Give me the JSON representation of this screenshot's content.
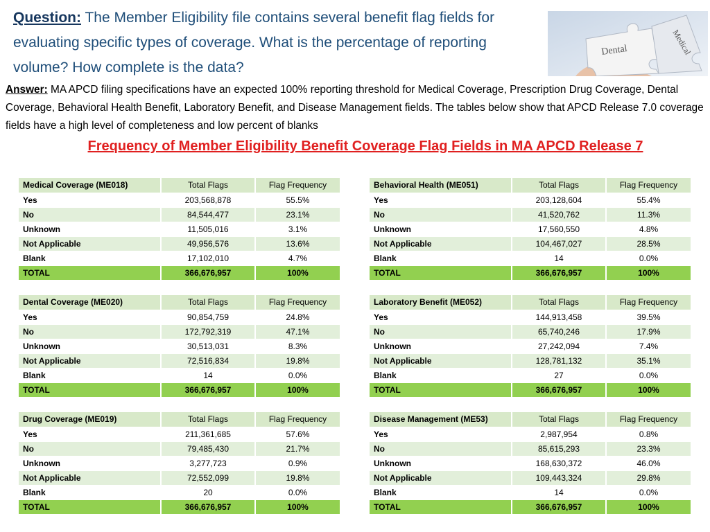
{
  "question": {
    "label": "Question:",
    "text": " The Member Eligibility file contains several benefit flag fields for evaluating  specific types of coverage. What is the percentage of reporting volume? How complete is the data?"
  },
  "image_labels": [
    "Dental",
    "Medical"
  ],
  "answer": {
    "label": "Answer:",
    "text": " MA APCD filing specifications have an expected 100% reporting threshold for Medical Coverage, Prescription Drug Coverage, Dental Coverage, Behavioral Health Benefit, Laboratory Benefit, and Disease Management fields. The tables below show that APCD Release 7.0 coverage fields have a high level of completeness and low percent of blanks"
  },
  "title": "Frequency of Member Eligibility Benefit Coverage Flag Fields in MA APCD Release 7",
  "tables": [
    {
      "header": [
        "Medical Coverage (ME018)",
        "Total Flags",
        "Flag  Frequency"
      ],
      "rows": [
        [
          "Yes",
          "203,568,878",
          "55.5%"
        ],
        [
          "No",
          "84,544,477",
          "23.1%"
        ],
        [
          "Unknown",
          "11,505,016",
          "3.1%"
        ],
        [
          "Not Applicable",
          "49,956,576",
          "13.6%"
        ],
        [
          "Blank",
          "17,102,010",
          "4.7%"
        ],
        [
          "TOTAL",
          "366,676,957",
          "100%"
        ]
      ]
    },
    {
      "header": [
        "Behavioral Health (ME051)",
        "Total Flags",
        "Flag  Frequency"
      ],
      "rows": [
        [
          "Yes",
          "203,128,604",
          "55.4%"
        ],
        [
          "No",
          "41,520,762",
          "11.3%"
        ],
        [
          "Unknown",
          "17,560,550",
          "4.8%"
        ],
        [
          "Not Applicable",
          "104,467,027",
          "28.5%"
        ],
        [
          "Blank",
          "14",
          "0.0%"
        ],
        [
          "TOTAL",
          "366,676,957",
          "100%"
        ]
      ]
    },
    {
      "header": [
        "Dental Coverage (ME020)",
        "Total Flags",
        "Flag  Frequency"
      ],
      "rows": [
        [
          "Yes",
          "90,854,759",
          "24.8%"
        ],
        [
          "No",
          "172,792,319",
          "47.1%"
        ],
        [
          "Unknown",
          "30,513,031",
          "8.3%"
        ],
        [
          "Not Applicable",
          "72,516,834",
          "19.8%"
        ],
        [
          "Blank",
          "14",
          "0.0%"
        ],
        [
          "TOTAL",
          "366,676,957",
          "100%"
        ]
      ]
    },
    {
      "header": [
        "Laboratory Benefit (ME052)",
        "Total Flags",
        "Flag  Frequency"
      ],
      "rows": [
        [
          "Yes",
          "144,913,458",
          "39.5%"
        ],
        [
          "No",
          "65,740,246",
          "17.9%"
        ],
        [
          "Unknown",
          "27,242,094",
          "7.4%"
        ],
        [
          "Not Applicable",
          "128,781,132",
          "35.1%"
        ],
        [
          "Blank",
          "27",
          "0.0%"
        ],
        [
          "TOTAL",
          "366,676,957",
          "100%"
        ]
      ]
    },
    {
      "header": [
        "Drug Coverage (ME019)",
        "Total Flags",
        "Flag  Frequency"
      ],
      "rows": [
        [
          "Yes",
          "211,361,685",
          "57.6%"
        ],
        [
          "No",
          "79,485,430",
          "21.7%"
        ],
        [
          "Unknown",
          "3,277,723",
          "0.9%"
        ],
        [
          "Not Applicable",
          "72,552,099",
          "19.8%"
        ],
        [
          "Blank",
          "20",
          "0.0%"
        ],
        [
          "TOTAL",
          "366,676,957",
          "100%"
        ]
      ]
    },
    {
      "header": [
        "Disease Management (ME53)",
        "Total Flags",
        "Flag Frequency"
      ],
      "rows": [
        [
          "Yes",
          "2,987,954",
          "0.8%"
        ],
        [
          "No",
          "85,615,293",
          "23.3%"
        ],
        [
          "Unknown",
          "168,630,372",
          "46.0%"
        ],
        [
          "Not Applicable",
          "109,443,324",
          "29.8%"
        ],
        [
          "Blank",
          "14",
          "0.0%"
        ],
        [
          "TOTAL",
          "366,676,957",
          "100%"
        ]
      ]
    }
  ]
}
